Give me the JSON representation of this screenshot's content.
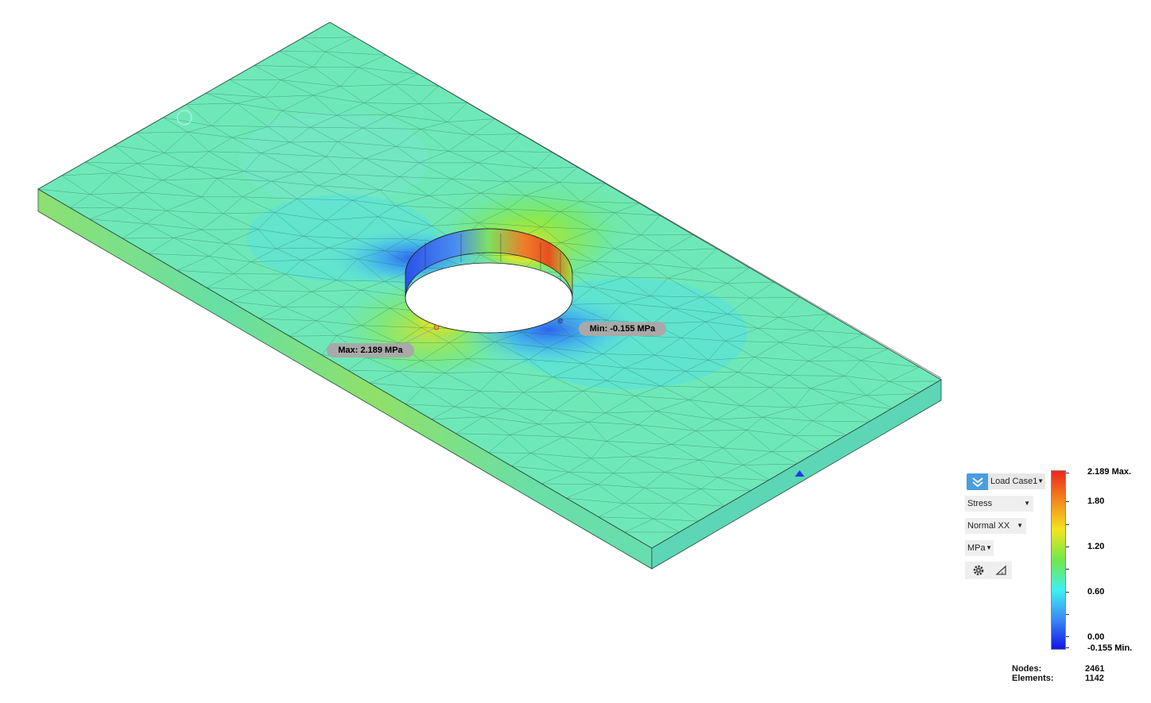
{
  "markers": {
    "max_label": "Max: 2.189 MPa",
    "min_label": "Min: -0.155 MPa"
  },
  "controls": {
    "load_case": "Load Case1",
    "result_type": "Stress",
    "component": "Normal XX",
    "unit": "MPa",
    "icons": [
      "check-double-icon",
      "gear-icon",
      "ruler-triangle-icon"
    ]
  },
  "legend": {
    "max_label": "2.189 Max.",
    "min_label": "-0.155 Min.",
    "ticks": [
      "1.80",
      "1.20",
      "0.60",
      "0.00"
    ],
    "colors": [
      "#e8281e",
      "#f58a1e",
      "#f2e51e",
      "#72e84c",
      "#3ef0f0",
      "#3a8cf5",
      "#1414e6"
    ]
  },
  "stats": {
    "nodes_label": "Nodes:",
    "nodes_value": "2461",
    "elements_label": "Elements:",
    "elements_value": "1142"
  }
}
